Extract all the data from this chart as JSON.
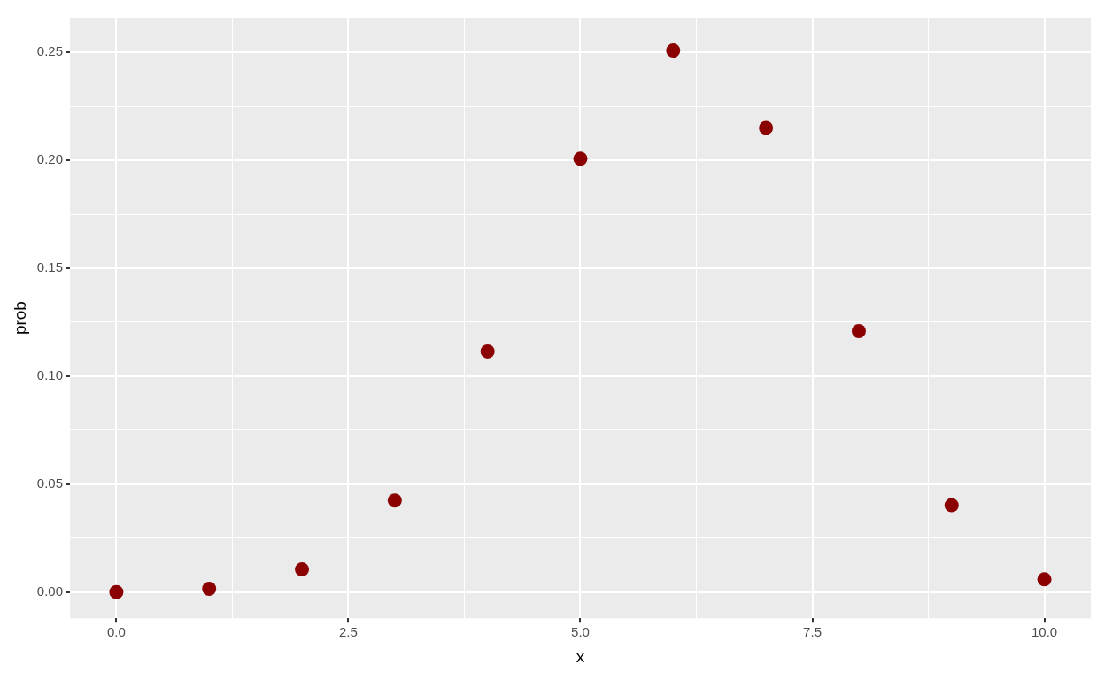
{
  "chart_data": {
    "type": "scatter",
    "xlabel": "x",
    "ylabel": "prob",
    "x": [
      0,
      1,
      2,
      3,
      4,
      5,
      6,
      7,
      8,
      9,
      10
    ],
    "series": [
      {
        "color": "#8b0000",
        "values": [
          0.0001,
          0.0016,
          0.0106,
          0.0425,
          0.1115,
          0.2007,
          0.2508,
          0.215,
          0.1209,
          0.0403,
          0.006
        ]
      }
    ],
    "xlim": [
      -0.5,
      10.5
    ],
    "xticks": [
      {
        "value": 0,
        "label": "0.0"
      },
      {
        "value": 1.25,
        "label": null
      },
      {
        "value": 2.5,
        "label": "2.5"
      },
      {
        "value": 3.75,
        "label": null
      },
      {
        "value": 5,
        "label": "5.0"
      },
      {
        "value": 6.25,
        "label": null
      },
      {
        "value": 7.5,
        "label": "7.5"
      },
      {
        "value": 8.75,
        "label": null
      },
      {
        "value": 10,
        "label": "10.0"
      }
    ],
    "ylim": [
      -0.012,
      0.266
    ],
    "yticks": [
      {
        "value": 0,
        "label": "0.00"
      },
      {
        "value": 0.025,
        "label": null
      },
      {
        "value": 0.05,
        "label": "0.05"
      },
      {
        "value": 0.075,
        "label": null
      },
      {
        "value": 0.1,
        "label": "0.10"
      },
      {
        "value": 0.125,
        "label": null
      },
      {
        "value": 0.15,
        "label": "0.15"
      },
      {
        "value": 0.175,
        "label": null
      },
      {
        "value": 0.2,
        "label": "0.20"
      },
      {
        "value": 0.225,
        "label": null
      },
      {
        "value": 0.25,
        "label": "0.25"
      }
    ],
    "grid": true,
    "marker": "circle",
    "legend": false
  }
}
